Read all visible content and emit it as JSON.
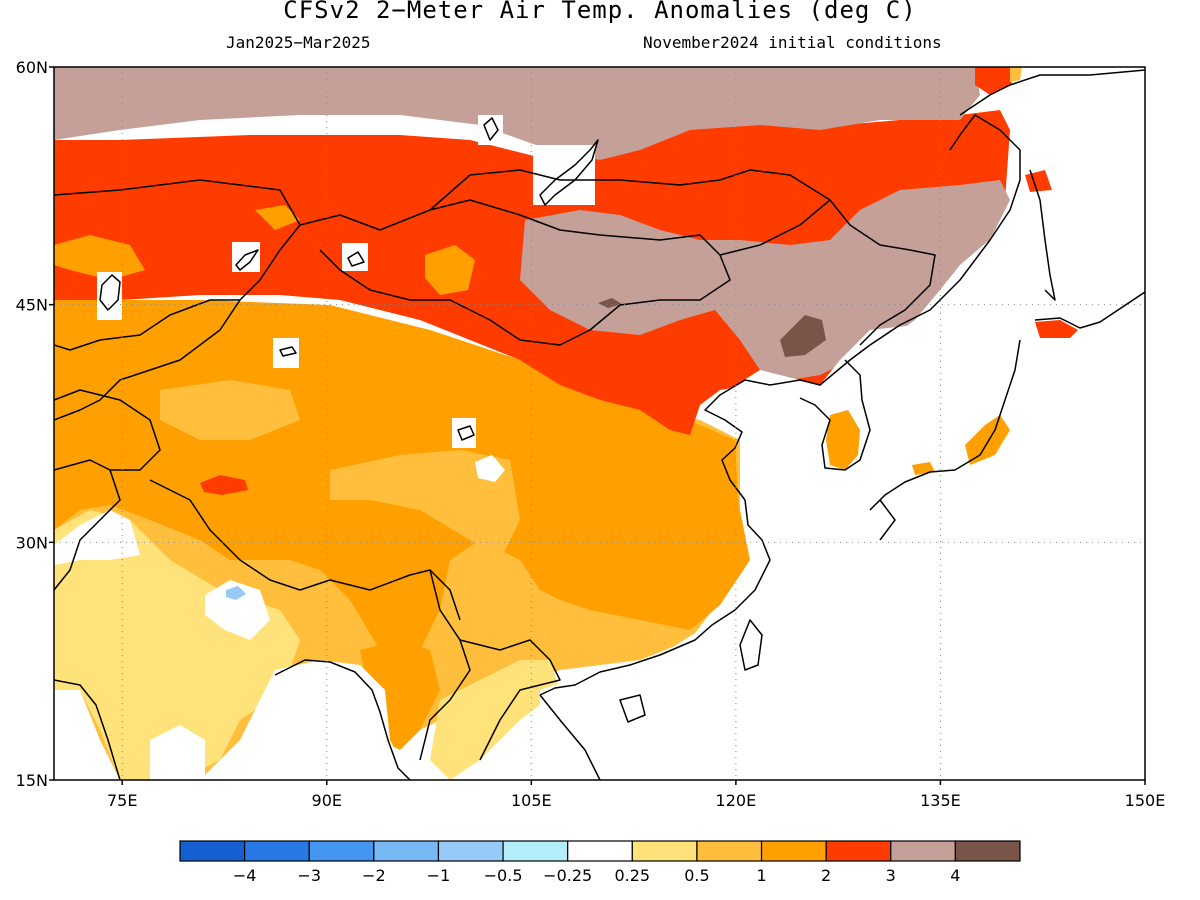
{
  "header": {
    "title": "CFSv2 2−Meter Air Temp. Anomalies (deg C)",
    "period": "Jan2025−Mar2025",
    "initial_conditions": "November2024 initial conditions"
  },
  "map": {
    "lon_range": [
      70,
      150
    ],
    "lat_range": [
      15,
      60
    ],
    "lat_ticks": [
      {
        "value": 60,
        "label": "60N"
      },
      {
        "value": 45,
        "label": "45N"
      },
      {
        "value": 30,
        "label": "30N"
      },
      {
        "value": 15,
        "label": "15N"
      }
    ],
    "lon_ticks": [
      {
        "value": 75,
        "label": "75E"
      },
      {
        "value": 90,
        "label": "90E"
      },
      {
        "value": 105,
        "label": "105E"
      },
      {
        "value": 120,
        "label": "120E"
      },
      {
        "value": 135,
        "label": "135E"
      },
      {
        "value": 150,
        "label": "150E"
      }
    ],
    "grid": "dotted"
  },
  "colorbar": {
    "colors": [
      "#1560d0",
      "#2878e6",
      "#4596f0",
      "#78b8f5",
      "#98caf7",
      "#b4eefa",
      "#ffffff",
      "#ffe27a",
      "#ffbe3c",
      "#ffa000",
      "#ff3c00",
      "#c4a098",
      "#7a5448"
    ],
    "labels": [
      "−4",
      "−3",
      "−2",
      "−1",
      "−0.5",
      "−0.25",
      "0.25",
      "0.5",
      "1",
      "2",
      "3",
      "4"
    ]
  }
}
